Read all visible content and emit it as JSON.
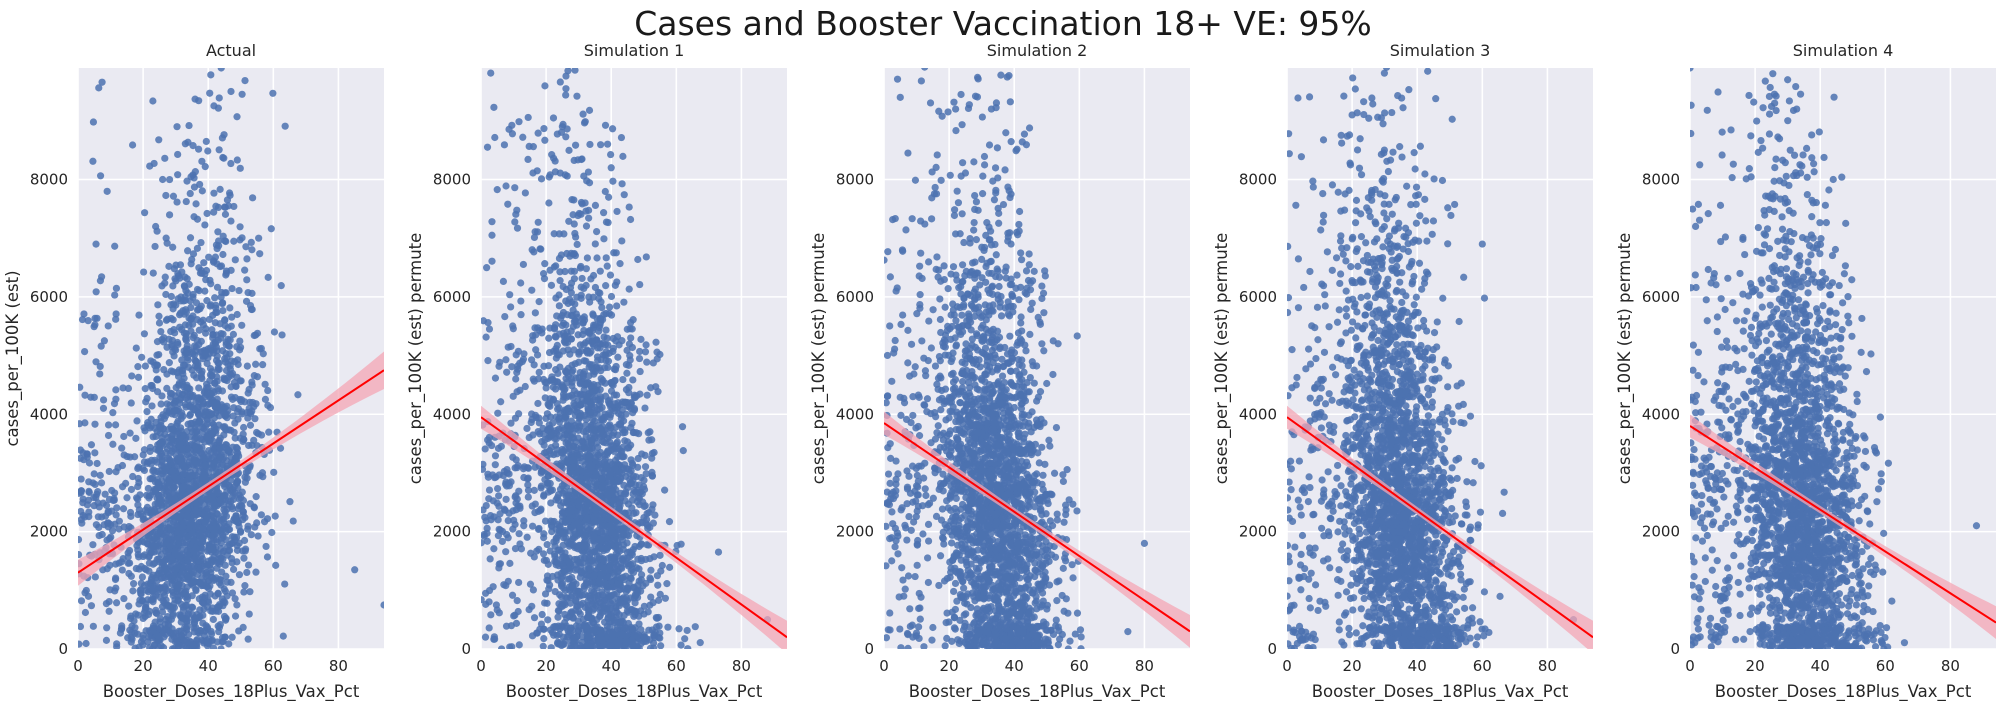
{
  "figure": {
    "title": "Cases and Booster Vaccination 18+ VE: 95%",
    "background": "#ffffff",
    "panel_background": "#eaeaf2",
    "grid_color": "#ffffff",
    "point_color": "#4c72b0",
    "line_color": "#ff0000",
    "band_color": "#f4a6b4"
  },
  "chart_data": [
    {
      "type": "scatter",
      "title": "Actual",
      "xlabel": "Booster_Doses_18Plus_Vax_Pct",
      "ylabel": "cases_per_100K (est)",
      "xlim": [
        0,
        94
      ],
      "ylim": [
        0,
        9900
      ],
      "xticks": [
        "0",
        "20",
        "40",
        "60",
        "80"
      ],
      "yticks": [
        "0",
        "2000",
        "4000",
        "6000",
        "8000"
      ],
      "grid": true,
      "points": {
        "n": 2600,
        "x_center": 35,
        "x_spread": 9.5,
        "y_center": 2700,
        "y_spread": 1500,
        "correlation": 0.23
      },
      "regression": {
        "x": [
          0,
          94
        ],
        "y": [
          1300,
          4750
        ],
        "ci_halfwidth_end": 320,
        "ci_halfwidth_mid": 70
      },
      "highlights": [
        {
          "x": 44,
          "y": 9900
        },
        {
          "x": 47,
          "y": 9500
        },
        {
          "x": 26,
          "y": 8000
        },
        {
          "x": 94,
          "y": 750
        },
        {
          "x": 85,
          "y": 1350
        }
      ]
    },
    {
      "type": "scatter",
      "title": "Simulation 1",
      "xlabel": "Booster_Doses_18Plus_Vax_Pct",
      "ylabel": "cases_per_100K (est) permute",
      "xlim": [
        0,
        94
      ],
      "ylim": [
        0,
        9900
      ],
      "xticks": [
        "0",
        "20",
        "40",
        "60",
        "80"
      ],
      "yticks": [
        "0",
        "2000",
        "4000",
        "6000",
        "8000"
      ],
      "grid": true,
      "points": {
        "n": 2600,
        "x_center": 34,
        "x_spread": 9.5,
        "y_center": 2600,
        "y_spread": 1800,
        "correlation": -0.3
      },
      "regression": {
        "x": [
          0,
          94
        ],
        "y": [
          3950,
          200
        ],
        "ci_halfwidth_end": 280,
        "ci_halfwidth_mid": 65
      },
      "highlights": [
        {
          "x": 2,
          "y": 8550
        },
        {
          "x": 25,
          "y": 8900
        },
        {
          "x": 40,
          "y": 8200
        },
        {
          "x": 88,
          "y": 500
        }
      ]
    },
    {
      "type": "scatter",
      "title": "Simulation 2",
      "xlabel": "Booster_Doses_18Plus_Vax_Pct",
      "ylabel": "cases_per_100K (est) permute",
      "xlim": [
        0,
        94
      ],
      "ylim": [
        0,
        9900
      ],
      "xticks": [
        "0",
        "20",
        "40",
        "60",
        "80"
      ],
      "yticks": [
        "0",
        "2000",
        "4000",
        "6000",
        "8000"
      ],
      "grid": true,
      "points": {
        "n": 2600,
        "x_center": 34,
        "x_spread": 9.5,
        "y_center": 2600,
        "y_spread": 1800,
        "correlation": -0.28
      },
      "regression": {
        "x": [
          0,
          94
        ],
        "y": [
          3850,
          300
        ],
        "ci_halfwidth_end": 280,
        "ci_halfwidth_mid": 65
      },
      "highlights": [
        {
          "x": 5,
          "y": 9400
        },
        {
          "x": 22,
          "y": 9200
        },
        {
          "x": 33,
          "y": 9200
        },
        {
          "x": 80,
          "y": 1800
        }
      ]
    },
    {
      "type": "scatter",
      "title": "Simulation 3",
      "xlabel": "Booster_Doses_18Plus_Vax_Pct",
      "ylabel": "cases_per_100K (est) permute",
      "xlim": [
        0,
        94
      ],
      "ylim": [
        0,
        9900
      ],
      "xticks": [
        "0",
        "20",
        "40",
        "60",
        "80"
      ],
      "yticks": [
        "0",
        "2000",
        "4000",
        "6000",
        "8000"
      ],
      "grid": true,
      "points": {
        "n": 2600,
        "x_center": 34,
        "x_spread": 9.5,
        "y_center": 2600,
        "y_spread": 1800,
        "correlation": -0.3
      },
      "regression": {
        "x": [
          0,
          94
        ],
        "y": [
          3950,
          200
        ],
        "ci_halfwidth_end": 280,
        "ci_halfwidth_mid": 65
      },
      "highlights": [
        {
          "x": 20,
          "y": 9100
        },
        {
          "x": 29,
          "y": 9050
        },
        {
          "x": 60,
          "y": 6900
        },
        {
          "x": 88,
          "y": 500
        }
      ]
    },
    {
      "type": "scatter",
      "title": "Simulation 4",
      "xlabel": "Booster_Doses_18Plus_Vax_Pct",
      "ylabel": "cases_per_100K (est) permute",
      "xlim": [
        0,
        94
      ],
      "ylim": [
        0,
        9900
      ],
      "xticks": [
        "0",
        "20",
        "40",
        "60",
        "80"
      ],
      "yticks": [
        "0",
        "2000",
        "4000",
        "6000",
        "8000"
      ],
      "grid": true,
      "points": {
        "n": 2600,
        "x_center": 34,
        "x_spread": 9.5,
        "y_center": 2600,
        "y_spread": 1800,
        "correlation": -0.27
      },
      "regression": {
        "x": [
          0,
          94
        ],
        "y": [
          3800,
          450
        ],
        "ci_halfwidth_end": 280,
        "ci_halfwidth_mid": 65
      },
      "highlights": [
        {
          "x": 0,
          "y": 9900
        },
        {
          "x": 30,
          "y": 9700
        },
        {
          "x": 26,
          "y": 9300
        },
        {
          "x": 44,
          "y": 8000
        },
        {
          "x": 88,
          "y": 2100
        }
      ]
    }
  ]
}
